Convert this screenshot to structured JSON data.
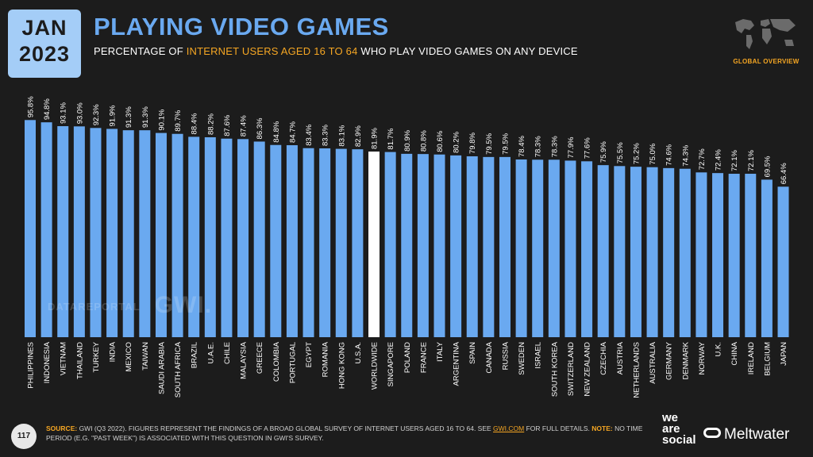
{
  "header": {
    "date_month": "JAN",
    "date_year": "2023",
    "title": "PLAYING VIDEO GAMES",
    "subtitle_pre": "PERCENTAGE OF ",
    "subtitle_highlight": "INTERNET USERS AGED 16 TO 64",
    "subtitle_post": " WHO PLAY VIDEO GAMES ON ANY DEVICE",
    "region_label": "GLOBAL OVERVIEW"
  },
  "watermark": {
    "left": "DATAREPORTAL",
    "right": "GWI."
  },
  "footer": {
    "page_number": "117",
    "source_label": "SOURCE:",
    "source_text_1": " GWI (Q3 2022). FIGURES REPRESENT THE FINDINGS OF A BROAD GLOBAL SURVEY OF INTERNET USERS AGED 16 TO 64. SEE ",
    "source_link": "GWI.COM",
    "source_text_2": " FOR FULL DETAILS. ",
    "note_label": "NOTE:",
    "note_text": " NO TIME PERIOD (E.G. \"PAST WEEK\") IS ASSOCIATED WITH THIS QUESTION IN GWI'S SURVEY.",
    "brand_1_line1": "we",
    "brand_1_line2": "are",
    "brand_1_line3": "social",
    "brand_2": "Meltwater"
  },
  "colors": {
    "bar": "#6aa9f0",
    "highlight_bar": "#ffffff",
    "background": "#1c1c1c",
    "accent": "#f5a623"
  },
  "chart_data": {
    "type": "bar",
    "categories": [
      "PHILIPPINES",
      "INDONESIA",
      "VIETNAM",
      "THAILAND",
      "TURKEY",
      "INDIA",
      "MEXICO",
      "TAIWAN",
      "SAUDI ARABIA",
      "SOUTH AFRICA",
      "BRAZIL",
      "U.A.E.",
      "CHILE",
      "MALAYSIA",
      "GREECE",
      "COLOMBIA",
      "PORTUGAL",
      "EGYPT",
      "ROMANIA",
      "HONG KONG",
      "U.S.A.",
      "WORLDWIDE",
      "SINGAPORE",
      "POLAND",
      "FRANCE",
      "ITALY",
      "ARGENTINA",
      "SPAIN",
      "CANADA",
      "RUSSIA",
      "SWEDEN",
      "ISRAEL",
      "SOUTH KOREA",
      "SWITZERLAND",
      "NEW ZEALAND",
      "CZECHIA",
      "AUSTRIA",
      "NETHERLANDS",
      "AUSTRALIA",
      "GERMANY",
      "DENMARK",
      "NORWAY",
      "U.K.",
      "CHINA",
      "IRELAND",
      "BELGIUM",
      "JAPAN"
    ],
    "values": [
      95.8,
      94.8,
      93.1,
      93.0,
      92.3,
      91.9,
      91.3,
      91.3,
      90.1,
      89.7,
      88.4,
      88.2,
      87.6,
      87.4,
      86.3,
      84.8,
      84.7,
      83.4,
      83.3,
      83.1,
      82.9,
      81.9,
      81.7,
      80.9,
      80.8,
      80.6,
      80.2,
      79.8,
      79.5,
      79.5,
      78.4,
      78.3,
      78.3,
      77.9,
      77.6,
      75.9,
      75.5,
      75.2,
      75.0,
      74.6,
      74.3,
      72.7,
      72.4,
      72.1,
      72.1,
      69.5,
      66.4
    ],
    "value_labels": [
      "95.8%",
      "94.8%",
      "93.1%",
      "93.0%",
      "92.3%",
      "91.9%",
      "91.3%",
      "91.3%",
      "90.1%",
      "89.7%",
      "88.4%",
      "88.2%",
      "87.6%",
      "87.4%",
      "86.3%",
      "84.8%",
      "84.7%",
      "83.4%",
      "83.3%",
      "83.1%",
      "82.9%",
      "81.9%",
      "81.7%",
      "80.9%",
      "80.8%",
      "80.6%",
      "80.2%",
      "79.8%",
      "79.5%",
      "79.5%",
      "78.4%",
      "78.3%",
      "78.3%",
      "77.9%",
      "77.6%",
      "75.9%",
      "75.5%",
      "75.2%",
      "75.0%",
      "74.6%",
      "74.3%",
      "72.7%",
      "72.4%",
      "72.1%",
      "72.1%",
      "69.5%",
      "66.4%"
    ],
    "highlight_category": "WORLDWIDE",
    "ylim": [
      0,
      100
    ],
    "grid": false,
    "legend": "none"
  }
}
